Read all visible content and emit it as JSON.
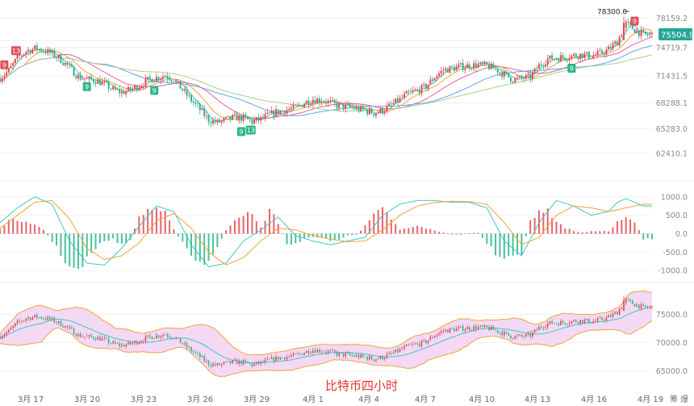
{
  "chart_data": {
    "type": "candlestick",
    "caption": "比特币四小时",
    "corner_label": "筹 爆",
    "x_tick_labels": [
      "3月 17",
      "3月 20",
      "3月 23",
      "3月 26",
      "3月 29",
      "4月 1",
      "4月 4",
      "4月 7",
      "4月 10",
      "4月 13",
      "4月 16",
      "4月 19"
    ],
    "price_panel": {
      "y_ticks": [
        78159.2,
        75504.9,
        74719.7,
        71431.5,
        68288.1,
        65283.0,
        62410.1
      ],
      "y_tick_labels": [
        "78159.2",
        "75504.9",
        "74719.7",
        "71431.5",
        "68288.1",
        "65283.0",
        "62410.1"
      ],
      "ylim": [
        61000,
        79500
      ],
      "last_price": 75504.9,
      "high_marker": {
        "label": "78300.0",
        "value": 78300.0
      },
      "closes": [
        [
          0,
          71200
        ],
        [
          8,
          72000
        ],
        [
          16,
          73500
        ],
        [
          24,
          74300
        ],
        [
          32,
          74600
        ],
        [
          40,
          74400
        ],
        [
          48,
          74000
        ],
        [
          56,
          73300
        ],
        [
          64,
          72400
        ],
        [
          72,
          71300
        ],
        [
          80,
          71000
        ],
        [
          88,
          70900
        ],
        [
          96,
          70500
        ],
        [
          104,
          69800
        ],
        [
          112,
          69500
        ],
        [
          120,
          69800
        ],
        [
          128,
          70300
        ],
        [
          136,
          70900
        ],
        [
          144,
          71200
        ],
        [
          152,
          71500
        ],
        [
          160,
          71000
        ],
        [
          168,
          69800
        ],
        [
          176,
          68600
        ],
        [
          184,
          67500
        ],
        [
          192,
          66300
        ],
        [
          200,
          66000
        ],
        [
          208,
          66300
        ],
        [
          216,
          66600
        ],
        [
          224,
          66500
        ],
        [
          232,
          66100
        ],
        [
          240,
          66400
        ],
        [
          248,
          66900
        ],
        [
          256,
          67300
        ],
        [
          264,
          67500
        ],
        [
          272,
          67700
        ],
        [
          280,
          68300
        ],
        [
          288,
          68700
        ],
        [
          296,
          68600
        ],
        [
          304,
          68300
        ],
        [
          312,
          67900
        ],
        [
          320,
          67800
        ],
        [
          328,
          67600
        ],
        [
          336,
          67400
        ],
        [
          344,
          67100
        ],
        [
          352,
          67400
        ],
        [
          360,
          68000
        ],
        [
          368,
          68700
        ],
        [
          376,
          69400
        ],
        [
          384,
          69700
        ],
        [
          392,
          70200
        ],
        [
          400,
          71300
        ],
        [
          408,
          72100
        ],
        [
          416,
          72300
        ],
        [
          424,
          72500
        ],
        [
          432,
          72600
        ],
        [
          440,
          72700
        ],
        [
          448,
          72600
        ],
        [
          456,
          72200
        ],
        [
          464,
          71600
        ],
        [
          472,
          71000
        ],
        [
          480,
          71100
        ],
        [
          488,
          71300
        ],
        [
          496,
          72600
        ],
        [
          504,
          73400
        ],
        [
          512,
          73500
        ],
        [
          520,
          73600
        ],
        [
          528,
          73800
        ],
        [
          536,
          73900
        ],
        [
          544,
          73700
        ],
        [
          552,
          74000
        ],
        [
          560,
          74500
        ],
        [
          568,
          75400
        ],
        [
          576,
          77500
        ],
        [
          584,
          76800
        ],
        [
          592,
          76200
        ]
      ]
    },
    "macd_panel": {
      "y_ticks": [
        1000.0,
        500.0,
        0.0,
        -500.0,
        -1000.0
      ],
      "y_tick_labels": [
        "1000.0",
        "500.0",
        "0.0",
        "-500.0",
        "-1000.0"
      ],
      "ylim": [
        -1150,
        1150
      ],
      "histogram": [
        [
          0,
          150
        ],
        [
          8,
          350
        ],
        [
          16,
          380
        ],
        [
          24,
          360
        ],
        [
          32,
          250
        ],
        [
          40,
          100
        ],
        [
          48,
          -200
        ],
        [
          56,
          -550
        ],
        [
          64,
          -900
        ],
        [
          72,
          -1050
        ],
        [
          80,
          -700
        ],
        [
          88,
          -400
        ],
        [
          96,
          -200
        ],
        [
          104,
          -150
        ],
        [
          112,
          -300
        ],
        [
          120,
          -200
        ],
        [
          128,
          450
        ],
        [
          136,
          650
        ],
        [
          144,
          700
        ],
        [
          152,
          550
        ],
        [
          160,
          100
        ],
        [
          168,
          -250
        ],
        [
          176,
          -600
        ],
        [
          184,
          -850
        ],
        [
          192,
          -800
        ],
        [
          200,
          -350
        ],
        [
          208,
          100
        ],
        [
          216,
          400
        ],
        [
          224,
          550
        ],
        [
          232,
          500
        ],
        [
          240,
          150
        ],
        [
          248,
          650
        ],
        [
          256,
          300
        ],
        [
          264,
          -300
        ],
        [
          272,
          -250
        ],
        [
          280,
          -150
        ],
        [
          288,
          -80
        ],
        [
          296,
          -100
        ],
        [
          304,
          -200
        ],
        [
          312,
          -150
        ],
        [
          320,
          -50
        ],
        [
          328,
          -30
        ],
        [
          336,
          200
        ],
        [
          344,
          500
        ],
        [
          352,
          650
        ],
        [
          360,
          400
        ],
        [
          368,
          100
        ],
        [
          376,
          150
        ],
        [
          384,
          200
        ],
        [
          392,
          150
        ],
        [
          400,
          80
        ],
        [
          408,
          30
        ],
        [
          416,
          -20
        ],
        [
          424,
          -30
        ],
        [
          432,
          10
        ],
        [
          440,
          30
        ],
        [
          448,
          -250
        ],
        [
          456,
          -550
        ],
        [
          464,
          -750
        ],
        [
          472,
          -650
        ],
        [
          480,
          -500
        ],
        [
          488,
          350
        ],
        [
          496,
          650
        ],
        [
          504,
          600
        ],
        [
          512,
          350
        ],
        [
          520,
          150
        ],
        [
          528,
          80
        ],
        [
          536,
          30
        ],
        [
          544,
          60
        ],
        [
          552,
          80
        ],
        [
          560,
          60
        ],
        [
          568,
          300
        ],
        [
          576,
          420
        ],
        [
          584,
          320
        ],
        [
          592,
          -150
        ]
      ],
      "macd_line": [
        [
          0,
          300
        ],
        [
          16,
          700
        ],
        [
          32,
          1000
        ],
        [
          48,
          800
        ],
        [
          64,
          -200
        ],
        [
          80,
          -800
        ],
        [
          96,
          -850
        ],
        [
          112,
          -400
        ],
        [
          128,
          200
        ],
        [
          144,
          750
        ],
        [
          160,
          600
        ],
        [
          176,
          -300
        ],
        [
          192,
          -900
        ],
        [
          208,
          -800
        ],
        [
          224,
          -200
        ],
        [
          240,
          100
        ],
        [
          256,
          450
        ],
        [
          272,
          -50
        ],
        [
          288,
          -200
        ],
        [
          304,
          -300
        ],
        [
          320,
          -200
        ],
        [
          336,
          -100
        ],
        [
          352,
          500
        ],
        [
          368,
          800
        ],
        [
          384,
          900
        ],
        [
          400,
          900
        ],
        [
          416,
          850
        ],
        [
          432,
          850
        ],
        [
          448,
          700
        ],
        [
          464,
          -200
        ],
        [
          480,
          -600
        ],
        [
          496,
          300
        ],
        [
          512,
          900
        ],
        [
          528,
          750
        ],
        [
          544,
          500
        ],
        [
          560,
          600
        ],
        [
          568,
          850
        ],
        [
          576,
          950
        ],
        [
          592,
          750
        ]
      ],
      "signal_line": [
        [
          0,
          150
        ],
        [
          16,
          500
        ],
        [
          32,
          850
        ],
        [
          48,
          900
        ],
        [
          64,
          400
        ],
        [
          80,
          -400
        ],
        [
          96,
          -700
        ],
        [
          112,
          -600
        ],
        [
          128,
          -250
        ],
        [
          144,
          350
        ],
        [
          160,
          550
        ],
        [
          176,
          150
        ],
        [
          192,
          -500
        ],
        [
          208,
          -850
        ],
        [
          224,
          -650
        ],
        [
          240,
          -200
        ],
        [
          256,
          150
        ],
        [
          272,
          100
        ],
        [
          288,
          -50
        ],
        [
          304,
          -150
        ],
        [
          320,
          -220
        ],
        [
          336,
          -200
        ],
        [
          352,
          100
        ],
        [
          368,
          500
        ],
        [
          384,
          750
        ],
        [
          400,
          850
        ],
        [
          416,
          880
        ],
        [
          432,
          870
        ],
        [
          448,
          800
        ],
        [
          464,
          300
        ],
        [
          480,
          -300
        ],
        [
          496,
          -100
        ],
        [
          512,
          500
        ],
        [
          528,
          750
        ],
        [
          544,
          700
        ],
        [
          560,
          600
        ],
        [
          576,
          700
        ],
        [
          592,
          800
        ]
      ]
    },
    "bollinger_panel": {
      "y_ticks": [
        75000.0,
        70000.0,
        65000.0
      ],
      "y_tick_labels": [
        "75000.0",
        "70000.0",
        "65000.0"
      ],
      "ylim": [
        63500,
        79500
      ]
    },
    "colors": {
      "up": "#e8474f",
      "down": "#2bb58a",
      "ma": [
        "#3fc7c7",
        "#f2a33a",
        "#e85fa0",
        "#5aa7e8",
        "#a8d18a"
      ],
      "macd_line": "#3fc7c7",
      "signal_line": "#f2a33a",
      "band_fill": "#f3d9f4",
      "band_edge": "#f2a33a",
      "caption": "#e3342f"
    },
    "td_markers": [
      {
        "i": 4,
        "label": "9",
        "kind": "sell"
      },
      {
        "i": 15,
        "label": "13",
        "kind": "sell"
      },
      {
        "i": 80,
        "label": "9",
        "kind": "buy"
      },
      {
        "i": 142,
        "label": "9",
        "kind": "buy"
      },
      {
        "i": 222,
        "label": "9",
        "kind": "buy"
      },
      {
        "i": 230,
        "label": "13",
        "kind": "buy"
      },
      {
        "i": 526,
        "label": "9",
        "kind": "buy"
      },
      {
        "i": 584,
        "label": "9",
        "kind": "sell"
      }
    ]
  }
}
